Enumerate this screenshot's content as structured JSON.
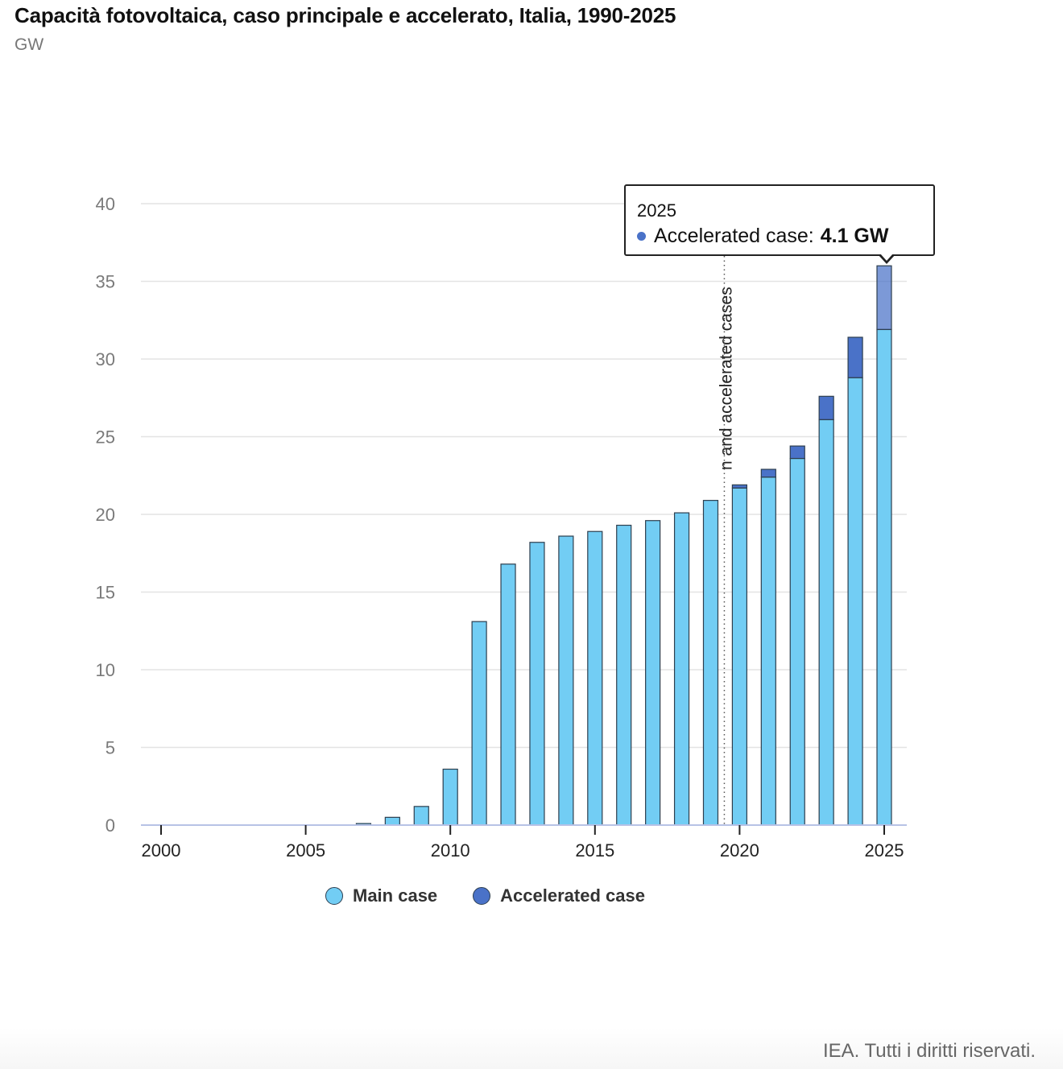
{
  "header": {
    "title": "Capacità fotovoltaica, caso principale e accelerato, Italia, 1990-2025",
    "unit": "GW"
  },
  "chart_data": {
    "type": "bar",
    "stacked": true,
    "title": "Capacità fotovoltaica, caso principale e accelerato, Italia, 1990-2025",
    "ylabel": "GW",
    "xlabel": "",
    "ylim": [
      0,
      40
    ],
    "yticks": [
      "0",
      "5",
      "10",
      "15",
      "20",
      "25",
      "30",
      "35",
      "40"
    ],
    "xlim": [
      1999.5,
      2025.5
    ],
    "xticks": [
      "2000",
      "2005",
      "2010",
      "2015",
      "2020",
      "2025"
    ],
    "grid": true,
    "categories": [
      2000,
      2001,
      2002,
      2003,
      2004,
      2005,
      2006,
      2007,
      2008,
      2009,
      2010,
      2011,
      2012,
      2013,
      2014,
      2015,
      2016,
      2017,
      2018,
      2019,
      2020,
      2021,
      2022,
      2023,
      2024,
      2025
    ],
    "series": [
      {
        "name": "Main case",
        "color": "#72cdf4",
        "values": [
          0,
          0,
          0,
          0,
          0,
          0,
          0,
          0.1,
          0.5,
          1.2,
          3.6,
          13.1,
          16.8,
          18.2,
          18.6,
          18.9,
          19.3,
          19.6,
          20.1,
          20.9,
          21.7,
          22.4,
          23.6,
          26.1,
          28.8,
          31.9
        ]
      },
      {
        "name": "Accelerated case",
        "color": "#4a72c8",
        "values": [
          0,
          0,
          0,
          0,
          0,
          0,
          0,
          0,
          0,
          0,
          0,
          0,
          0,
          0,
          0,
          0,
          0,
          0,
          0,
          0,
          0.2,
          0.5,
          0.8,
          1.5,
          2.6,
          4.1
        ]
      }
    ],
    "annotation": {
      "x": 2019.5,
      "text": "Historical, main and accelerated cases",
      "visible_text": "n and accelerated cases"
    },
    "legend": {
      "position": "bottom",
      "items": [
        "Main case",
        "Accelerated case"
      ]
    },
    "tooltip": {
      "year": "2025",
      "series_label": "Accelerated case:",
      "value": "4.1 GW"
    }
  },
  "footer": {
    "credit": "IEA. Tutti i diritti riservati."
  }
}
